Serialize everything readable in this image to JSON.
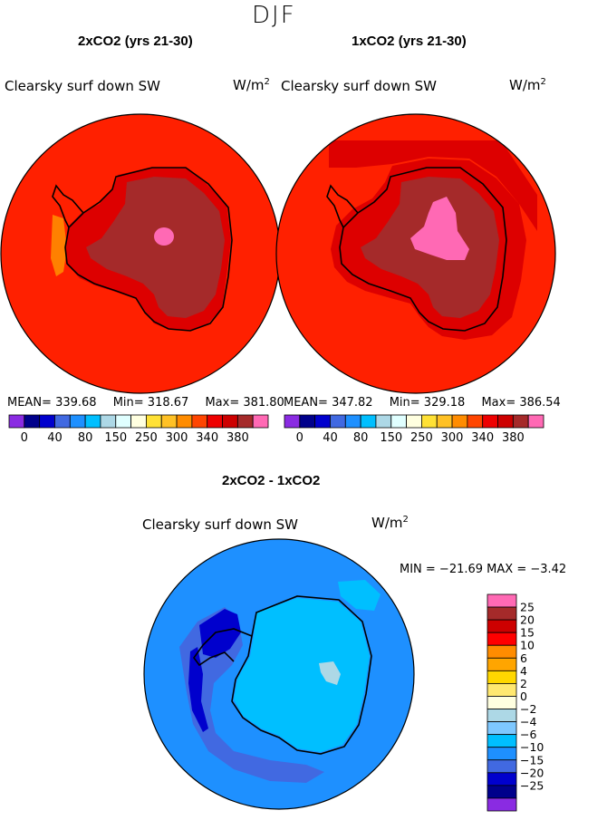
{
  "season": "DJF",
  "panels": [
    {
      "title": "2xCO2 (yrs 21-30)",
      "field": "Clearsky surf down SW",
      "units_base": "W/m",
      "units_exp": "2",
      "stats": {
        "mean": "MEAN= 339.68",
        "min": "Min= 318.67",
        "max": "Max= 381.80"
      }
    },
    {
      "title": "1xCO2 (yrs 21-30)",
      "field": "Clearsky surf down SW",
      "units_base": "W/m",
      "units_exp": "2",
      "stats": {
        "mean": "MEAN= 347.82",
        "min": "Min= 329.18",
        "max": "Max= 386.54"
      }
    }
  ],
  "diff": {
    "title": "2xCO2 - 1xCO2",
    "field": "Clearsky surf down SW",
    "units_base": "W/m",
    "units_exp": "2",
    "minmax": "MIN = −21.69 MAX =  −3.42"
  },
  "abs_colorbar": {
    "colors": [
      "#8a2be2",
      "#00008b",
      "#0000cd",
      "#4169e1",
      "#1e90ff",
      "#00bfff",
      "#add8e6",
      "#e0ffff",
      "#ffffe0",
      "#ffe135",
      "#ffc125",
      "#ff8c00",
      "#ff4500",
      "#ee0000",
      "#cd0000",
      "#a52a2a",
      "#ff69b4"
    ],
    "tick_labels": [
      "0",
      "40",
      "80",
      "150",
      "250",
      "300",
      "340",
      "380"
    ]
  },
  "diff_colorbar": {
    "colors": [
      "#ff69b4",
      "#a52a2a",
      "#cd0000",
      "#ff0000",
      "#ff8c00",
      "#ffa500",
      "#ffd700",
      "#ffe870",
      "#ffffe0",
      "#add8e6",
      "#7ec8ff",
      "#00bfff",
      "#1e90ff",
      "#4169e1",
      "#0000cd",
      "#00008b",
      "#8a2be2"
    ],
    "tick_labels": [
      "25",
      "20",
      "15",
      "10",
      "6",
      "4",
      "2",
      "0",
      "−2",
      "−4",
      "−6",
      "−10",
      "−15",
      "−20",
      "−25"
    ]
  },
  "map_colors": {
    "ocean_2x": "#ff2000",
    "ocean_1x": "#ff2000",
    "coast_band": "#dd0000",
    "ice_sheet": "#a52a2a",
    "high_plateau": "#ff69b4",
    "orange_patch": "#ff8000",
    "diff_ocean": "#1e90ff",
    "diff_land": "#00bfff",
    "diff_strong": "#0000cd",
    "diff_mid": "#4169e1",
    "diff_light": "#add8e6"
  }
}
